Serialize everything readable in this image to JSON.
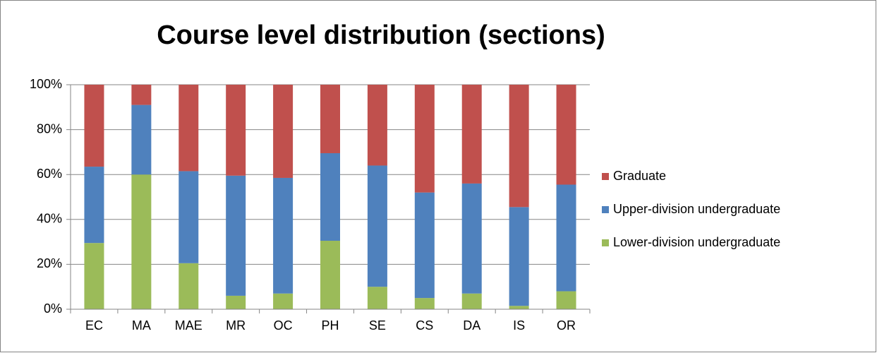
{
  "chart_data": {
    "type": "stacked_bar",
    "title": "Course level distribution (sections)",
    "categories": [
      "EC",
      "MA",
      "MAE",
      "MR",
      "OC",
      "PH",
      "SE",
      "CS",
      "DA",
      "IS",
      "OR"
    ],
    "series": [
      {
        "name": "Lower-division undergraduate",
        "color": "#9bbb59",
        "values": [
          29.5,
          60,
          20.5,
          6,
          7,
          30.5,
          10,
          5,
          7,
          1.5,
          8
        ]
      },
      {
        "name": "Upper-division undergraduate",
        "color": "#4f81bd",
        "values": [
          34,
          31,
          41,
          53.5,
          51.5,
          39,
          54,
          47,
          49,
          44,
          47.5
        ]
      },
      {
        "name": "Graduate",
        "color": "#c0504d",
        "values": [
          36.5,
          9,
          38.5,
          40.5,
          41.5,
          30.5,
          36,
          48,
          44,
          54.5,
          44.5
        ]
      }
    ],
    "ylim": [
      0,
      100
    ],
    "yticks": [
      {
        "value": 0,
        "label": "0%"
      },
      {
        "value": 20,
        "label": "20%"
      },
      {
        "value": 40,
        "label": "40%"
      },
      {
        "value": 60,
        "label": "60%"
      },
      {
        "value": 80,
        "label": "80%"
      },
      {
        "value": 100,
        "label": "100%"
      }
    ],
    "grid": true,
    "legend": "right"
  }
}
